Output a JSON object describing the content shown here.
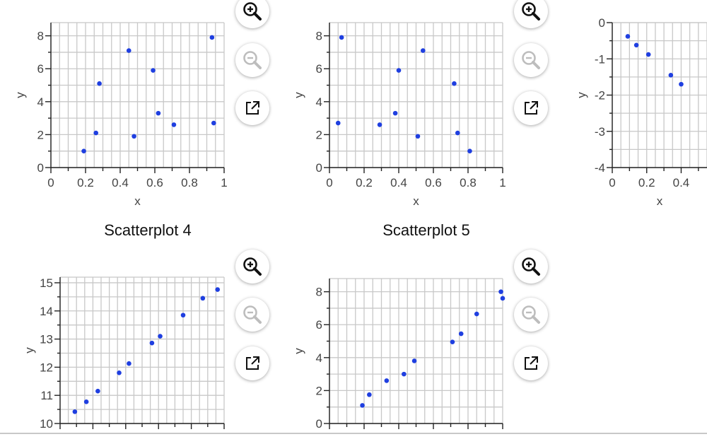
{
  "colors": {
    "point": "#1f3fe0",
    "grid": "#c8c8c8",
    "axis": "#222222",
    "text": "#444444"
  },
  "buttons": {
    "zoom_in_icon": "zoom-in-icon",
    "zoom_out_icon": "zoom-out-icon",
    "open_icon": "external-link-icon"
  },
  "chart_data": [
    {
      "type": "scatter",
      "title": "",
      "xlabel": "x",
      "ylabel": "y",
      "xlim": [
        0,
        1
      ],
      "ylim": [
        0,
        8.8
      ],
      "xticks": [
        "0",
        "0.2",
        "0.4",
        "0.6",
        "0.8",
        "1"
      ],
      "yticks": [
        "0",
        "2",
        "4",
        "6",
        "8"
      ],
      "points": [
        [
          0.19,
          1.0
        ],
        [
          0.26,
          2.1
        ],
        [
          0.28,
          5.1
        ],
        [
          0.45,
          7.1
        ],
        [
          0.48,
          1.9
        ],
        [
          0.59,
          5.9
        ],
        [
          0.62,
          3.3
        ],
        [
          0.71,
          2.6
        ],
        [
          0.93,
          7.9
        ],
        [
          0.94,
          2.7
        ]
      ],
      "grid": true
    },
    {
      "type": "scatter",
      "title": "",
      "xlabel": "x",
      "ylabel": "y",
      "xlim": [
        0,
        1
      ],
      "ylim": [
        0,
        8.8
      ],
      "xticks": [
        "0",
        "0.2",
        "0.4",
        "0.6",
        "0.8",
        "1"
      ],
      "yticks": [
        "0",
        "2",
        "4",
        "6",
        "8"
      ],
      "points": [
        [
          0.05,
          2.7
        ],
        [
          0.07,
          7.9
        ],
        [
          0.29,
          2.6
        ],
        [
          0.38,
          3.3
        ],
        [
          0.4,
          5.9
        ],
        [
          0.51,
          1.9
        ],
        [
          0.54,
          7.1
        ],
        [
          0.72,
          5.1
        ],
        [
          0.74,
          2.1
        ],
        [
          0.81,
          1.0
        ]
      ],
      "grid": true
    },
    {
      "type": "scatter",
      "title": "",
      "xlabel": "x",
      "ylabel": "y",
      "xlim": [
        0,
        0.55
      ],
      "ylim": [
        -4,
        0
      ],
      "xticks": [
        "0",
        "0.2",
        "0.4"
      ],
      "yticks": [
        "-4",
        "-3",
        "-2",
        "-1",
        "0"
      ],
      "points": [
        [
          0.09,
          -0.38
        ],
        [
          0.14,
          -0.62
        ],
        [
          0.21,
          -0.88
        ],
        [
          0.34,
          -1.45
        ],
        [
          0.4,
          -1.7
        ]
      ],
      "grid": true
    },
    {
      "type": "scatter",
      "title": "Scatterplot 4",
      "xlabel": "",
      "ylabel": "y",
      "xlim": [
        0,
        1
      ],
      "ylim": [
        10,
        15.2
      ],
      "xticks": [],
      "yticks": [
        "10",
        "11",
        "12",
        "13",
        "14",
        "15"
      ],
      "points": [
        [
          0.09,
          10.42
        ],
        [
          0.16,
          10.77
        ],
        [
          0.23,
          11.15
        ],
        [
          0.36,
          11.8
        ],
        [
          0.42,
          12.13
        ],
        [
          0.56,
          12.86
        ],
        [
          0.61,
          13.1
        ],
        [
          0.75,
          13.85
        ],
        [
          0.87,
          14.45
        ],
        [
          0.96,
          14.76
        ]
      ],
      "grid": true
    },
    {
      "type": "scatter",
      "title": "Scatterplot 5",
      "xlabel": "",
      "ylabel": "y",
      "xlim": [
        0,
        1
      ],
      "ylim": [
        0,
        8.8
      ],
      "xticks": [],
      "yticks": [
        "0",
        "2",
        "4",
        "6",
        "8"
      ],
      "points": [
        [
          0.19,
          1.1
        ],
        [
          0.23,
          1.75
        ],
        [
          0.33,
          2.6
        ],
        [
          0.43,
          3.0
        ],
        [
          0.49,
          3.8
        ],
        [
          0.71,
          4.95
        ],
        [
          0.76,
          5.45
        ],
        [
          0.85,
          6.65
        ],
        [
          0.99,
          8.0
        ],
        [
          1.0,
          7.6
        ]
      ],
      "grid": true
    }
  ]
}
